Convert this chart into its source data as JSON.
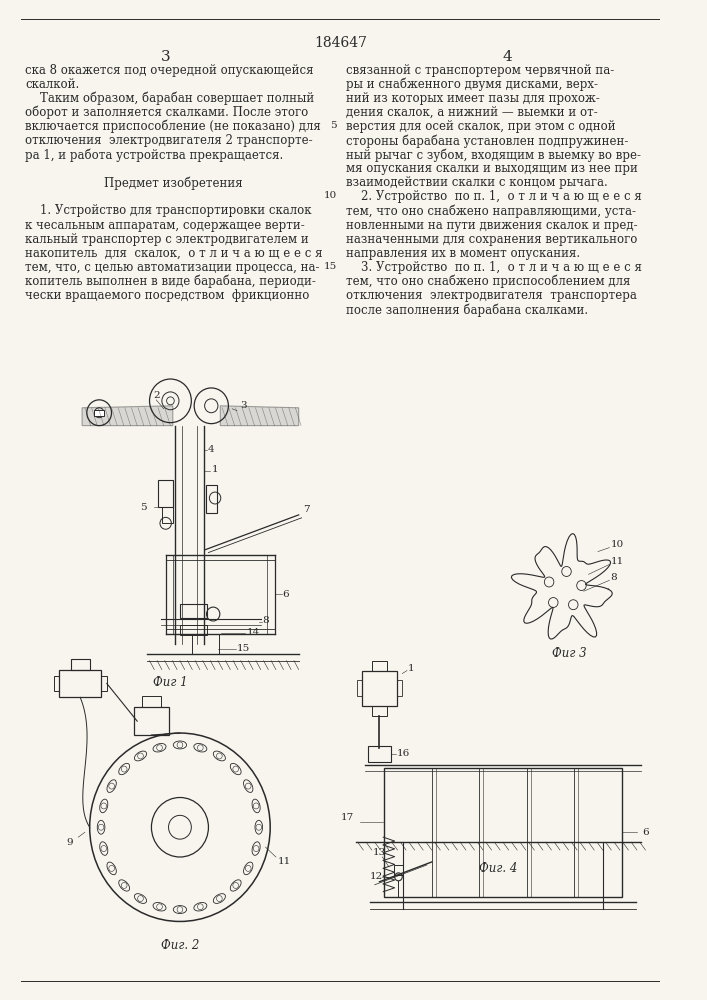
{
  "patent_number": "184647",
  "background_color": "#f8f5ef",
  "text_color": "#2a2a2a",
  "left_column_lines": [
    "ска 8 окажется под очередной опускающейся",
    "скалкой.",
    "    Таким образом, барабан совершает полный",
    "оборот и заполняется скалками. После этого",
    "включается приспособление (не показано) для",
    "отключения  электродвигателя 2 транспорте-",
    "ра 1, и работа устройства прекращается.",
    "",
    "         Предмет изобретения",
    "",
    "    1. Устройство для транспортировки скалок",
    "к чесальным аппаратам, содержащее верти-",
    "кальный транспортер с электродвигателем и",
    "накопитель  для  скалок,  о т л и ч а ю щ е е с я",
    "тем, что, с целью автоматизации процесса, на-",
    "копитель выполнен в виде барабана, периоди-",
    "чески вращаемого посредством  фрикционно"
  ],
  "right_column_lines": [
    "связанной с транспортером червячной па-",
    "ры и снабженного двумя дисками, верх-",
    "ний из которых имеет пазы для прохож-",
    "дения скалок, а нижний — выемки и от-",
    "верстия для осей скалок, при этом с одной",
    "стороны барабана установлен подпружинен-",
    "ный рычаг с зубом, входящим в выемку во вре-",
    "мя опускания скалки и выходящим из нее при",
    "взаимодействии скалки с концом рычага.",
    "    2. Устройство  по п. 1,  о т л и ч а ю щ е е с я",
    "тем, что оно снабжено направляющими, уста-",
    "новленными на пути движения скалок и пред-",
    "назначенными для сохранения вертикального",
    "направления их в момент опускания.",
    "    3. Устройство  по п. 1,  о т л и ч а ю щ е е с я",
    "тем, что оно снабжено приспособлением для",
    "отключения  электродвигателя  транспортера",
    "после заполнения барабана скалками."
  ],
  "line_numbers": {
    "4": "5",
    "9": "10",
    "14": "15"
  }
}
